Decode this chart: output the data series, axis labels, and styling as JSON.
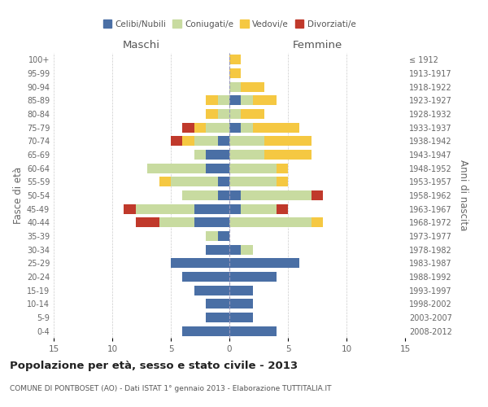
{
  "age_groups": [
    "0-4",
    "5-9",
    "10-14",
    "15-19",
    "20-24",
    "25-29",
    "30-34",
    "35-39",
    "40-44",
    "45-49",
    "50-54",
    "55-59",
    "60-64",
    "65-69",
    "70-74",
    "75-79",
    "80-84",
    "85-89",
    "90-94",
    "95-99",
    "100+"
  ],
  "birth_years": [
    "2008-2012",
    "2003-2007",
    "1998-2002",
    "1993-1997",
    "1988-1992",
    "1983-1987",
    "1978-1982",
    "1973-1977",
    "1968-1972",
    "1963-1967",
    "1958-1962",
    "1953-1957",
    "1948-1952",
    "1943-1947",
    "1938-1942",
    "1933-1937",
    "1928-1932",
    "1923-1927",
    "1918-1922",
    "1913-1917",
    "≤ 1912"
  ],
  "colors": {
    "celibi": "#4a6fa5",
    "coniugati": "#c8dba0",
    "vedovi": "#f5c842",
    "divorziati": "#c0392b"
  },
  "maschi": {
    "celibi": [
      4,
      2,
      2,
      3,
      4,
      5,
      2,
      1,
      3,
      3,
      1,
      1,
      2,
      2,
      1,
      0,
      0,
      0,
      0,
      0,
      0
    ],
    "coniugati": [
      0,
      0,
      0,
      0,
      0,
      0,
      0,
      1,
      3,
      5,
      3,
      4,
      5,
      1,
      2,
      2,
      1,
      1,
      0,
      0,
      0
    ],
    "vedovi": [
      0,
      0,
      0,
      0,
      0,
      0,
      0,
      0,
      0,
      0,
      0,
      1,
      0,
      0,
      1,
      1,
      1,
      1,
      0,
      0,
      0
    ],
    "divorziati": [
      0,
      0,
      0,
      0,
      0,
      0,
      0,
      0,
      2,
      1,
      0,
      0,
      0,
      0,
      1,
      1,
      0,
      0,
      0,
      0,
      0
    ]
  },
  "femmine": {
    "celibi": [
      4,
      2,
      2,
      2,
      4,
      6,
      1,
      0,
      0,
      1,
      1,
      0,
      0,
      0,
      0,
      1,
      0,
      1,
      0,
      0,
      0
    ],
    "coniugati": [
      0,
      0,
      0,
      0,
      0,
      0,
      1,
      0,
      7,
      3,
      6,
      4,
      4,
      3,
      3,
      1,
      1,
      1,
      1,
      0,
      0
    ],
    "vedovi": [
      0,
      0,
      0,
      0,
      0,
      0,
      0,
      0,
      1,
      0,
      0,
      1,
      1,
      4,
      4,
      4,
      2,
      2,
      2,
      1,
      1
    ],
    "divorziati": [
      0,
      0,
      0,
      0,
      0,
      0,
      0,
      0,
      0,
      1,
      1,
      0,
      0,
      0,
      0,
      0,
      0,
      0,
      0,
      0,
      0
    ]
  },
  "xlim": 15,
  "title": "Popolazione per età, sesso e stato civile - 2013",
  "subtitle": "COMUNE DI PONTBOSET (AO) - Dati ISTAT 1° gennaio 2013 - Elaborazione TUTTITALIA.IT",
  "ylabel_left": "Fasce di età",
  "ylabel_right": "Anni di nascita",
  "xlabel_left": "Maschi",
  "xlabel_right": "Femmine"
}
